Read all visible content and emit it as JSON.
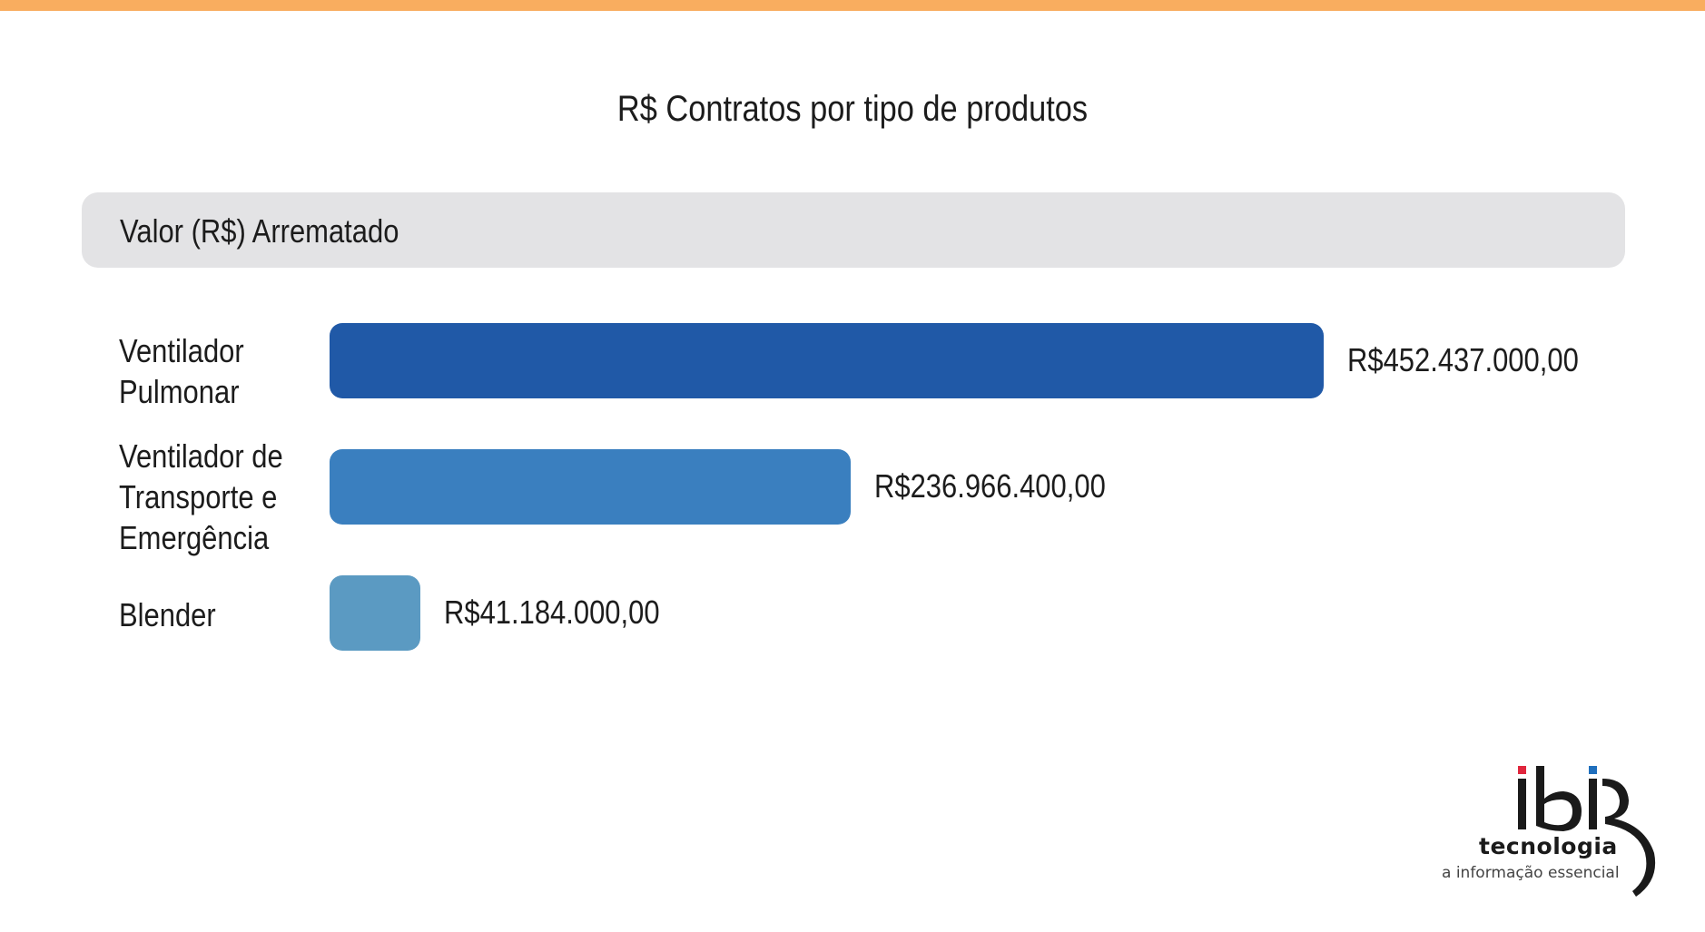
{
  "chart_data": {
    "type": "bar",
    "orientation": "horizontal",
    "title": "R$ Contratos por tipo de produtos",
    "series_header": "Valor (R$) Arrematado",
    "categories": [
      "Ventilador\nPulmonar",
      "Ventilador de\nTransporte e\nEmergência",
      "Blender"
    ],
    "values": [
      452437000,
      236966400,
      41184000
    ],
    "value_labels": [
      "R$452.437.000,00",
      "R$236.966.400,00",
      "R$41.184.000,00"
    ],
    "colors": [
      "#2059a7",
      "#3a7fbf",
      "#5b9ac2"
    ],
    "grid": false
  },
  "logo": {
    "main": "tecnologia",
    "tagline": "a informação essencial",
    "dot_colors": [
      "#e0263d",
      "#1f6fbd"
    ]
  }
}
